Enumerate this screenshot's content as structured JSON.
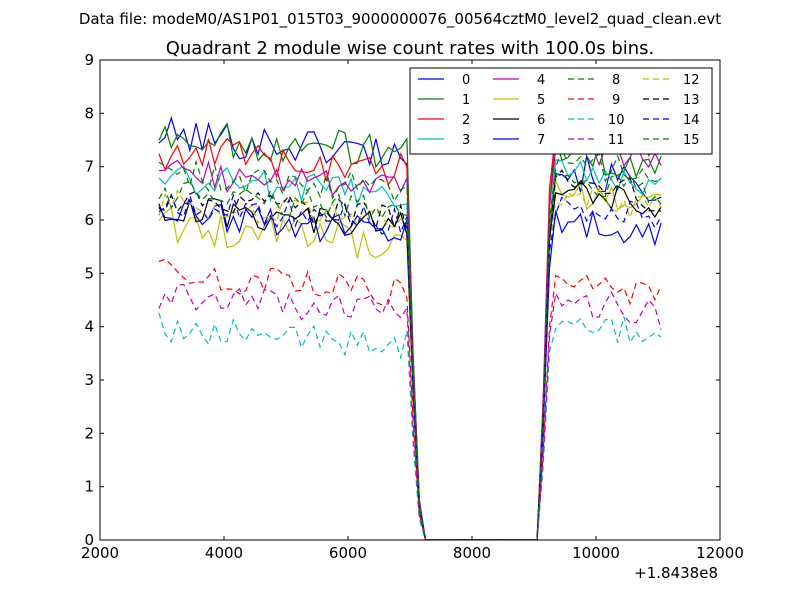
{
  "header": {
    "data_file": "Data file: modeM0/AS1P01_015T03_9000000076_00564cztM0_level2_quad_clean.evt"
  },
  "chart_data": {
    "type": "line",
    "title": "Quadrant 2 module wise count rates with 100.0s bins.",
    "xlabel": "",
    "ylabel": "",
    "xlim": [
      2000,
      12000
    ],
    "ylim": [
      0,
      9
    ],
    "x_ticks": [
      2000,
      4000,
      6000,
      8000,
      10000,
      12000
    ],
    "x_tick_labels": [
      "2000",
      "4000",
      "6000",
      "8000",
      "10000",
      "12000"
    ],
    "y_ticks": [
      0,
      1,
      2,
      3,
      4,
      5,
      6,
      7,
      8,
      9
    ],
    "y_tick_labels": [
      "0",
      "1",
      "2",
      "3",
      "4",
      "5",
      "6",
      "7",
      "8",
      "9"
    ],
    "x_offset_label": "+1.8438e8",
    "grid": false,
    "legend_position": "top-right",
    "legend_columns": 4,
    "segments": [
      {
        "x_start": 2950,
        "x_end": 6950,
        "step": 100
      },
      {
        "x_start": 7050,
        "x_end": 9050,
        "step": 100
      },
      {
        "x_start": 9150,
        "x_end": 11050,
        "step": 100
      }
    ],
    "gap_points": {
      "x": [
        7050,
        7150,
        7250,
        9050,
        9150,
        9250
      ],
      "fraction_of_level": [
        0.45,
        0.1,
        0,
        0,
        0.35,
        0.85
      ]
    },
    "series": [
      {
        "name": "0",
        "color": "#0000ff",
        "dash": "solid",
        "level_before": 7.6,
        "level_after": 6.9,
        "noise": 0.25
      },
      {
        "name": "1",
        "color": "#008000",
        "dash": "solid",
        "level_before": 7.6,
        "level_after": 7.3,
        "noise": 0.25
      },
      {
        "name": "2",
        "color": "#ff0000",
        "dash": "solid",
        "level_before": 7.3,
        "level_after": 7.7,
        "noise": 0.25
      },
      {
        "name": "3",
        "color": "#00bfbf",
        "dash": "solid",
        "level_before": 6.8,
        "level_after": 6.9,
        "noise": 0.2
      },
      {
        "name": "4",
        "color": "#bf00bf",
        "dash": "solid",
        "level_before": 6.9,
        "level_after": 7.4,
        "noise": 0.2
      },
      {
        "name": "5",
        "color": "#bfbf00",
        "dash": "solid",
        "level_before": 5.9,
        "level_after": 6.5,
        "noise": 0.25
      },
      {
        "name": "6",
        "color": "#000000",
        "dash": "solid",
        "level_before": 6.2,
        "level_after": 6.6,
        "noise": 0.2
      },
      {
        "name": "7",
        "color": "#0000ff",
        "dash": "solid",
        "level_before": 6.1,
        "level_after": 6.0,
        "noise": 0.2
      },
      {
        "name": "8",
        "color": "#008000",
        "dash": "dashed",
        "level_before": 6.9,
        "level_after": 7.1,
        "noise": 0.2
      },
      {
        "name": "9",
        "color": "#ff0000",
        "dash": "dashed",
        "level_before": 5.0,
        "level_after": 4.8,
        "noise": 0.2
      },
      {
        "name": "10",
        "color": "#00bfbf",
        "dash": "dashed",
        "level_before": 4.0,
        "level_after": 4.1,
        "noise": 0.2
      },
      {
        "name": "11",
        "color": "#bf00bf",
        "dash": "dashed",
        "level_before": 4.6,
        "level_after": 4.5,
        "noise": 0.2
      },
      {
        "name": "12",
        "color": "#bfbf00",
        "dash": "dashed",
        "level_before": 6.3,
        "level_after": 6.5,
        "noise": 0.2
      },
      {
        "name": "13",
        "color": "#000000",
        "dash": "dashed",
        "level_before": 6.4,
        "level_after": 6.7,
        "noise": 0.2
      },
      {
        "name": "14",
        "color": "#0000ff",
        "dash": "dashed",
        "level_before": 6.3,
        "level_after": 6.3,
        "noise": 0.2
      },
      {
        "name": "15",
        "color": "#008000",
        "dash": "dashed",
        "level_before": 6.5,
        "level_after": 6.8,
        "noise": 0.2
      }
    ]
  }
}
